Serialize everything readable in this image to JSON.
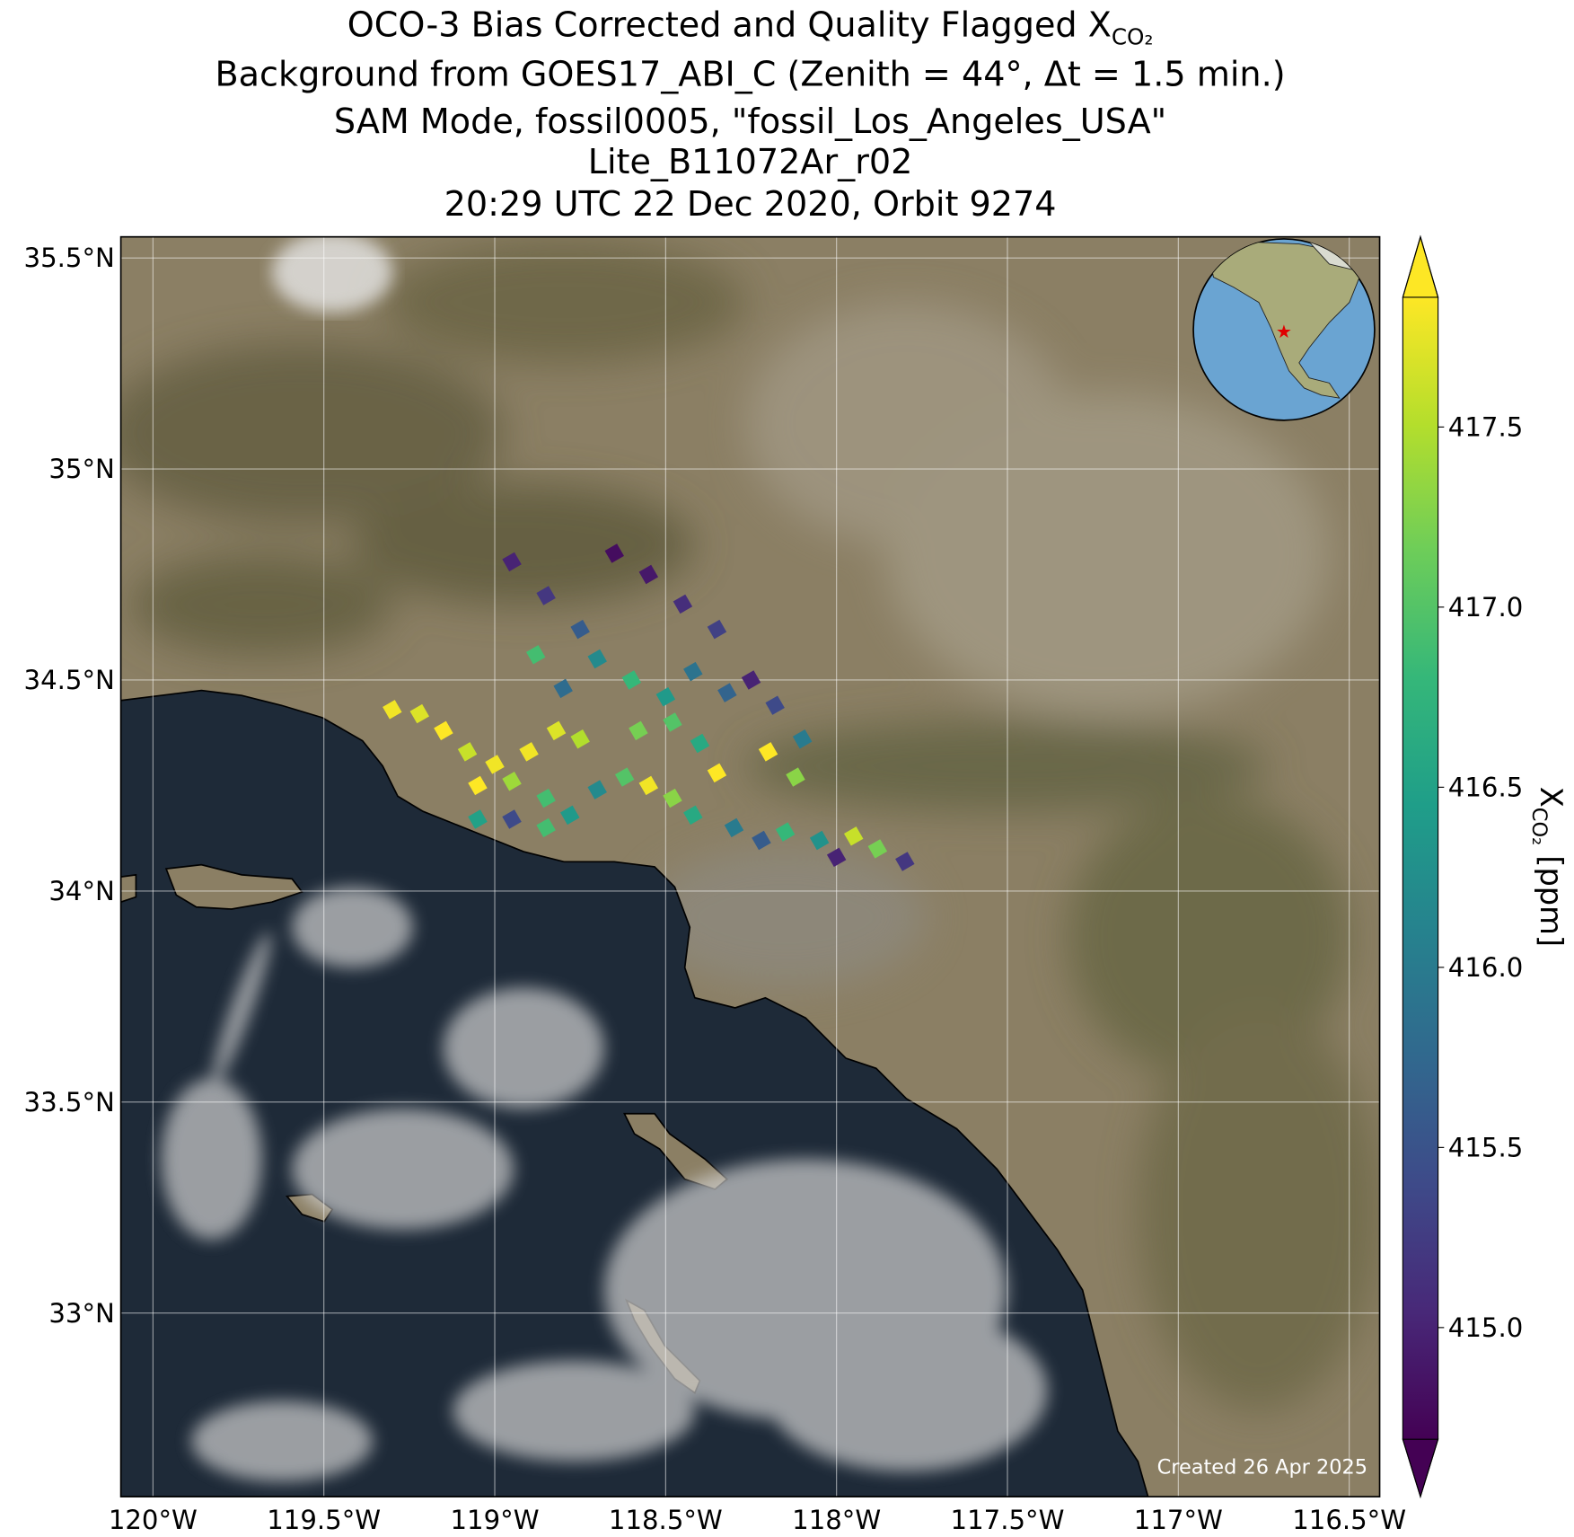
{
  "chart_data": {
    "type": "map",
    "title": [
      "OCO-3 Bias Corrected and Quality Flagged X",
      "Background from GOES17_ABI_C (Zenith = 44°, Δt =  1.5 min.)",
      "SAM Mode, fossil0005, \"fossil_Los_Angeles_USA\"",
      "Lite_B11072Ar_r02",
      "20:29 UTC 22 Dec 2020, Orbit 9274"
    ],
    "title_subscript": "CO₂",
    "annotation": "Created 26 Apr 2025",
    "colorbar_label": {
      "main": "X",
      "sub": "CO₂",
      "unit": "[ppm]"
    },
    "colormap": "viridis",
    "grid": true,
    "xlim": [
      -120.094,
      -116.411
    ],
    "ylim": [
      32.565,
      35.55
    ],
    "xticks": [
      {
        "value": -120,
        "label": "120°W"
      },
      {
        "value": -119.5,
        "label": "119.5°W"
      },
      {
        "value": -119,
        "label": "119°W"
      },
      {
        "value": -118.5,
        "label": "118.5°W"
      },
      {
        "value": -118,
        "label": "118°W"
      },
      {
        "value": -117.5,
        "label": "117.5°W"
      },
      {
        "value": -117,
        "label": "117°W"
      },
      {
        "value": -116.5,
        "label": "116.5°W"
      }
    ],
    "yticks": [
      {
        "value": 33,
        "label": "33°N"
      },
      {
        "value": 33.5,
        "label": "33.5°N"
      },
      {
        "value": 34,
        "label": "34°N"
      },
      {
        "value": 34.5,
        "label": "34.5°N"
      },
      {
        "value": 35,
        "label": "35°N"
      },
      {
        "value": 35.5,
        "label": "35.5°N"
      }
    ],
    "clim": [
      414.69,
      417.86
    ],
    "cticks": [
      {
        "value": 415,
        "label": "415.0"
      },
      415.5,
      {
        "value": 416,
        "label": "416.0"
      },
      416.5,
      {
        "value": 417,
        "label": "417.0"
      },
      417.5
    ],
    "x": [
      -119.3,
      -119.22,
      -119.15,
      -119.08,
      -119.0,
      -118.95,
      -119.05,
      -118.9,
      -118.82,
      -118.75,
      -118.85,
      -118.78,
      -118.7,
      -118.62,
      -118.55,
      -118.48,
      -118.42,
      -118.35,
      -118.3,
      -118.22,
      -118.15,
      -118.05,
      -117.95,
      -117.88,
      -117.8,
      -118.0,
      -118.95,
      -118.85,
      -118.75,
      -118.65,
      -118.55,
      -118.45,
      -118.35,
      -118.7,
      -118.6,
      -118.5,
      -118.42,
      -118.32,
      -118.25,
      -118.18,
      -118.1,
      -118.48,
      -118.4,
      -118.8,
      -118.88,
      -118.58,
      -118.2,
      -118.12,
      -119.05,
      -118.95,
      -118.85
    ],
    "y": [
      34.43,
      34.42,
      34.38,
      34.33,
      34.3,
      34.26,
      34.25,
      34.33,
      34.38,
      34.36,
      34.22,
      34.18,
      34.24,
      34.27,
      34.25,
      34.22,
      34.18,
      34.28,
      34.15,
      34.12,
      34.14,
      34.12,
      34.13,
      34.1,
      34.07,
      34.08,
      34.78,
      34.7,
      34.62,
      34.8,
      34.75,
      34.68,
      34.62,
      34.55,
      34.5,
      34.46,
      34.52,
      34.47,
      34.5,
      34.44,
      34.36,
      34.4,
      34.35,
      34.48,
      34.56,
      34.38,
      34.33,
      34.27,
      34.17,
      34.17,
      34.15
    ],
    "values": [
      417.8,
      417.7,
      417.9,
      417.6,
      417.8,
      417.4,
      417.9,
      417.8,
      417.7,
      417.5,
      416.9,
      416.4,
      416.2,
      417.0,
      417.8,
      417.3,
      416.6,
      417.9,
      416.0,
      415.6,
      416.8,
      416.3,
      417.6,
      417.2,
      415.2,
      415.0,
      415.0,
      415.2,
      415.6,
      414.8,
      414.9,
      415.1,
      415.3,
      416.2,
      416.8,
      416.4,
      415.9,
      415.7,
      415.0,
      415.4,
      416.0,
      417.0,
      416.6,
      415.8,
      416.9,
      417.2,
      417.9,
      417.3,
      416.5,
      415.4,
      416.9
    ]
  }
}
